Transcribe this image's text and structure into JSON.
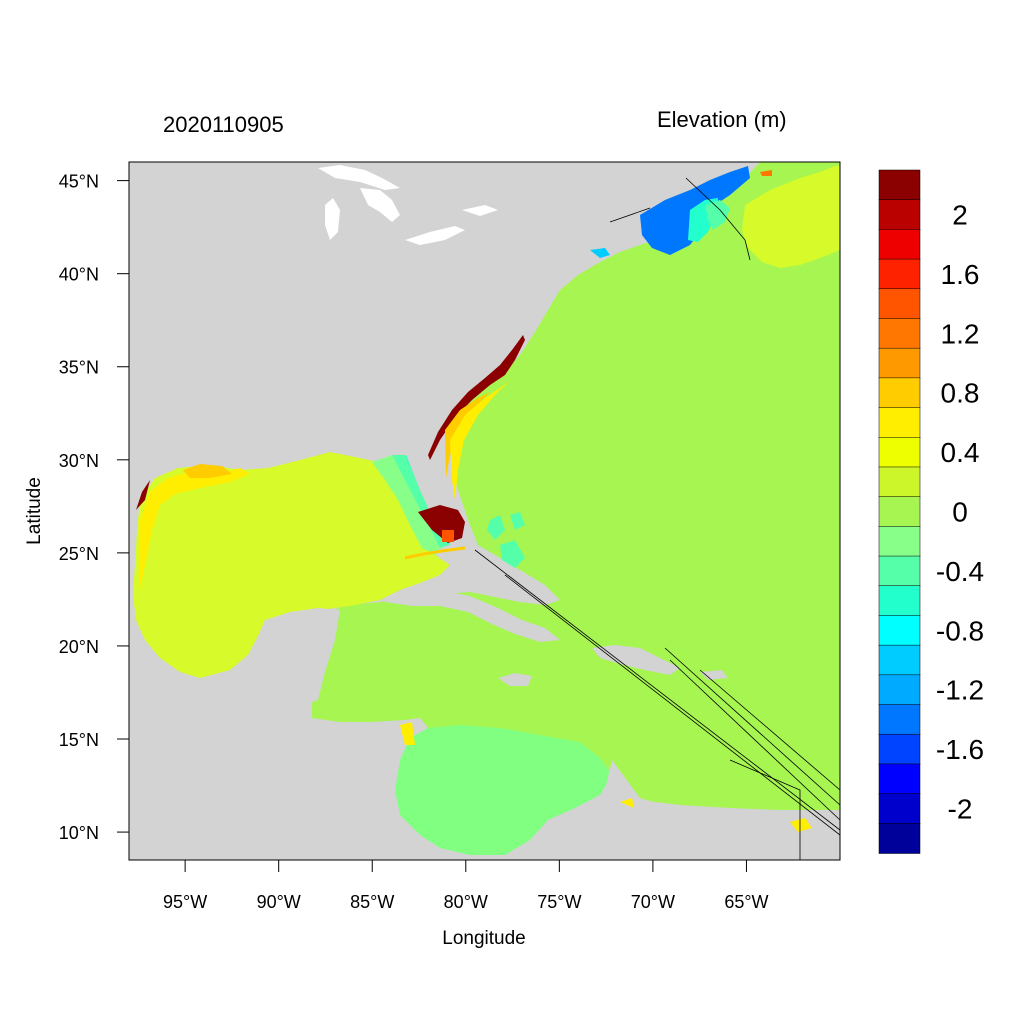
{
  "date_label": "2020110905",
  "units_label": "Elevation (m)",
  "axes": {
    "xlabel": "Longitude",
    "ylabel": "Latitude",
    "lon_range": [
      -98,
      -60
    ],
    "lat_range": [
      8.5,
      46
    ],
    "lon_ticks": [
      {
        "value": -95,
        "label": "95°W"
      },
      {
        "value": -90,
        "label": "90°W"
      },
      {
        "value": -85,
        "label": "85°W"
      },
      {
        "value": -80,
        "label": "80°W"
      },
      {
        "value": -75,
        "label": "75°W"
      },
      {
        "value": -70,
        "label": "70°W"
      },
      {
        "value": -65,
        "label": "65°W"
      }
    ],
    "lat_ticks": [
      {
        "value": 45,
        "label": "45°N"
      },
      {
        "value": 40,
        "label": "40°N"
      },
      {
        "value": 35,
        "label": "35°N"
      },
      {
        "value": 30,
        "label": "30°N"
      },
      {
        "value": 25,
        "label": "25°N"
      },
      {
        "value": 20,
        "label": "20°N"
      },
      {
        "value": 15,
        "label": "15°N"
      },
      {
        "value": 10,
        "label": "10°N"
      }
    ]
  },
  "colorbar": {
    "colors": [
      "#00009a",
      "#0000cd",
      "#0000ff",
      "#0044ff",
      "#0077ff",
      "#00aaff",
      "#00ccff",
      "#00ffff",
      "#22ffcc",
      "#55ffaa",
      "#88ff88",
      "#a6f550",
      "#ccf52a",
      "#eeff00",
      "#ffee00",
      "#ffcc00",
      "#ff9900",
      "#ff7700",
      "#ff5500",
      "#ff2200",
      "#ee0000",
      "#bb0000",
      "#8b0000"
    ],
    "labels": [
      "2",
      "1.6",
      "1.2",
      "0.8",
      "0.4",
      "0",
      "-0.4",
      "-0.8",
      "-1.2",
      "-1.6",
      "-2"
    ]
  },
  "map_colors": {
    "land": "#d3d3d3",
    "ocean_base": "#a6f550",
    "gulf": "#d6fa2a",
    "near_zero_neg": "#80ff80",
    "coast_high": "#ffee00",
    "surge_max": "#8b0000",
    "setdown": "#0077ff"
  }
}
